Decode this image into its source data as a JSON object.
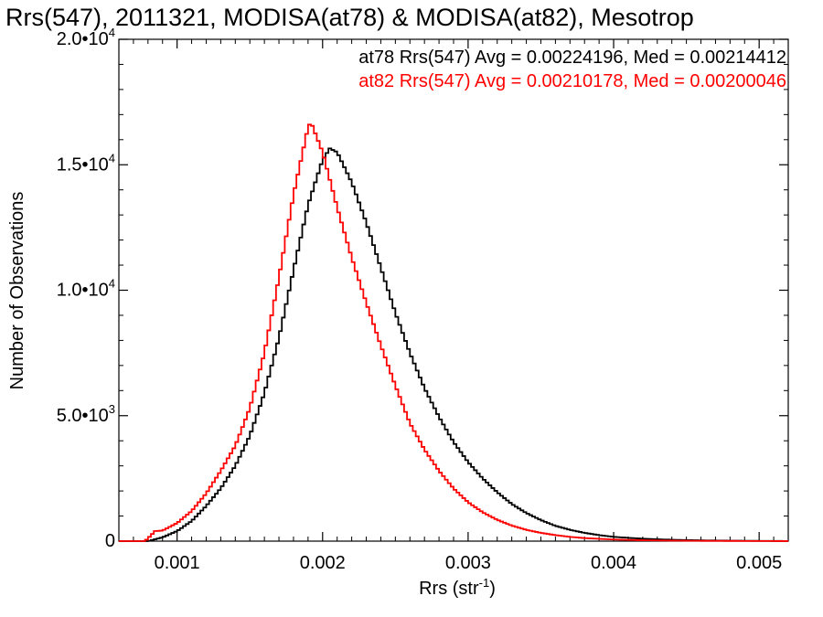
{
  "chart_data": {
    "type": "line",
    "title": "Rrs(547), 2011321, MODISA(at78) & MODISA(at82), Mesotrop",
    "xlabel": "Rrs (str",
    "xlabel_sup": "-1",
    "xlabel_close": ")",
    "ylabel": "Number of Observations",
    "xlim": [
      0.0006,
      0.0052
    ],
    "ylim": [
      0,
      20000
    ],
    "x_ticks": [
      {
        "value": 0.001,
        "label": "0.001"
      },
      {
        "value": 0.002,
        "label": "0.002"
      },
      {
        "value": 0.003,
        "label": "0.003"
      },
      {
        "value": 0.004,
        "label": "0.004"
      },
      {
        "value": 0.005,
        "label": "0.005"
      }
    ],
    "y_ticks": [
      {
        "value": 0,
        "mant": "0",
        "exp": ""
      },
      {
        "value": 5000,
        "mant": "5.0•10",
        "exp": "3"
      },
      {
        "value": 10000,
        "mant": "1.0•10",
        "exp": "4"
      },
      {
        "value": 15000,
        "mant": "1.5•10",
        "exp": "4"
      },
      {
        "value": 20000,
        "mant": "2.0•10",
        "exp": "4"
      }
    ],
    "grid": false,
    "legend_placement": "top-right",
    "series": [
      {
        "name": "at78",
        "color": "#000000",
        "annotation": "at78 Rrs(547) Avg = 0.00224196, Med = 0.00214412",
        "points": [
          [
            0.0006,
            0
          ],
          [
            0.0008,
            0
          ],
          [
            0.0009,
            150
          ],
          [
            0.001,
            400
          ],
          [
            0.0011,
            800
          ],
          [
            0.0012,
            1400
          ],
          [
            0.0013,
            2100
          ],
          [
            0.0014,
            3000
          ],
          [
            0.0015,
            4200
          ],
          [
            0.0016,
            5900
          ],
          [
            0.0017,
            8100
          ],
          [
            0.0018,
            10800
          ],
          [
            0.0019,
            13400
          ],
          [
            0.002,
            15200
          ],
          [
            0.00205,
            15650
          ],
          [
            0.0021,
            15500
          ],
          [
            0.0022,
            14300
          ],
          [
            0.0023,
            12700
          ],
          [
            0.0024,
            10900
          ],
          [
            0.0025,
            9100
          ],
          [
            0.0026,
            7500
          ],
          [
            0.0027,
            6100
          ],
          [
            0.0028,
            4950
          ],
          [
            0.0029,
            3950
          ],
          [
            0.003,
            3150
          ],
          [
            0.0031,
            2500
          ],
          [
            0.0032,
            1950
          ],
          [
            0.0033,
            1480
          ],
          [
            0.0034,
            1120
          ],
          [
            0.0035,
            840
          ],
          [
            0.0036,
            610
          ],
          [
            0.0037,
            450
          ],
          [
            0.0038,
            330
          ],
          [
            0.0039,
            240
          ],
          [
            0.004,
            170
          ],
          [
            0.0042,
            95
          ],
          [
            0.0044,
            55
          ],
          [
            0.0046,
            30
          ],
          [
            0.0048,
            18
          ],
          [
            0.005,
            10
          ],
          [
            0.0052,
            5
          ]
        ]
      },
      {
        "name": "at82",
        "color": "#ff0000",
        "annotation": "at82 Rrs(547) Avg = 0.00210178, Med = 0.00200046",
        "points": [
          [
            0.0006,
            0
          ],
          [
            0.00078,
            0
          ],
          [
            0.00085,
            400
          ],
          [
            0.0009,
            420
          ],
          [
            0.001,
            720
          ],
          [
            0.0011,
            1200
          ],
          [
            0.0012,
            1900
          ],
          [
            0.0013,
            2800
          ],
          [
            0.0014,
            3800
          ],
          [
            0.0015,
            5300
          ],
          [
            0.0016,
            7500
          ],
          [
            0.0017,
            10500
          ],
          [
            0.0018,
            13800
          ],
          [
            0.0019,
            16500
          ],
          [
            0.00192,
            16700
          ],
          [
            0.002,
            15500
          ],
          [
            0.0021,
            13300
          ],
          [
            0.0022,
            11300
          ],
          [
            0.0023,
            9500
          ],
          [
            0.0024,
            7800
          ],
          [
            0.0025,
            6200
          ],
          [
            0.0026,
            4700
          ],
          [
            0.0027,
            3650
          ],
          [
            0.0028,
            2800
          ],
          [
            0.0029,
            2100
          ],
          [
            0.003,
            1550
          ],
          [
            0.0031,
            1150
          ],
          [
            0.0032,
            850
          ],
          [
            0.0033,
            620
          ],
          [
            0.0034,
            450
          ],
          [
            0.0035,
            330
          ],
          [
            0.0036,
            240
          ],
          [
            0.0037,
            170
          ],
          [
            0.0038,
            120
          ],
          [
            0.004,
            65
          ],
          [
            0.0042,
            35
          ],
          [
            0.0044,
            20
          ],
          [
            0.0046,
            12
          ],
          [
            0.0048,
            7
          ],
          [
            0.005,
            4
          ],
          [
            0.0052,
            2
          ]
        ]
      }
    ]
  }
}
